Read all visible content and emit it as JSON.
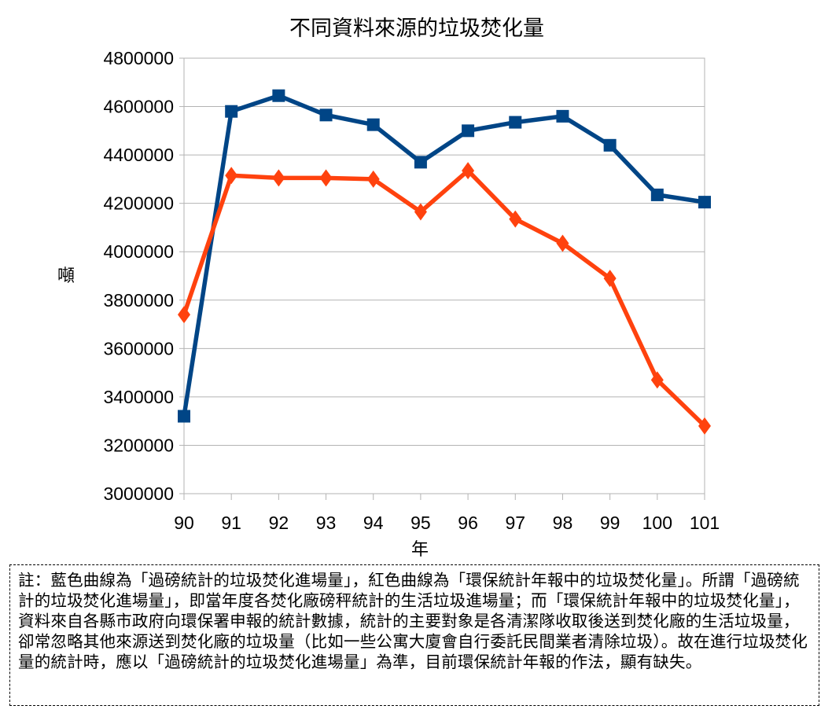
{
  "chart_data": {
    "type": "line",
    "title": "不同資料來源的垃圾焚化量",
    "xlabel": "年",
    "ylabel": "噸",
    "categories": [
      "90",
      "91",
      "92",
      "93",
      "94",
      "95",
      "96",
      "97",
      "98",
      "99",
      "100",
      "101"
    ],
    "ylim": [
      3000000,
      4800000
    ],
    "yticks": [
      "3000000",
      "3200000",
      "3400000",
      "3600000",
      "3800000",
      "4000000",
      "4200000",
      "4400000",
      "4600000",
      "4800000"
    ],
    "grid": true,
    "series": [
      {
        "color": "#004586",
        "marker": "square",
        "values": [
          3320000,
          4580000,
          4645000,
          4565000,
          4525000,
          4370000,
          4500000,
          4535000,
          4560000,
          4440000,
          4235000,
          4205000
        ]
      },
      {
        "color": "#ff420e",
        "marker": "diamond",
        "values": [
          3740000,
          4315000,
          4305000,
          4305000,
          4300000,
          4165000,
          4335000,
          4135000,
          4035000,
          3890000,
          3470000,
          3280000
        ]
      }
    ]
  },
  "note": "註：藍色曲線為「過磅統計的垃圾焚化進場量」，紅色曲線為「環保統計年報中的垃圾焚化量」。所謂「過磅統計的垃圾焚化進場量」，即當年度各焚化廠磅秤統計的生活垃圾進場量；而「環保統計年報中的垃圾焚化量」，資料來自各縣市政府向環保署申報的統計數據，統計的主要對象是各清潔隊收取後送到焚化廠的生活垃圾量，卻常忽略其他來源送到焚化廠的垃圾量（比如一些公寓大廈會自行委託民間業者清除垃圾）。故在進行垃圾焚化量的統計時，應以「過磅統計的垃圾焚化進場量」為準，目前環保統計年報的作法，顯有缺失。"
}
